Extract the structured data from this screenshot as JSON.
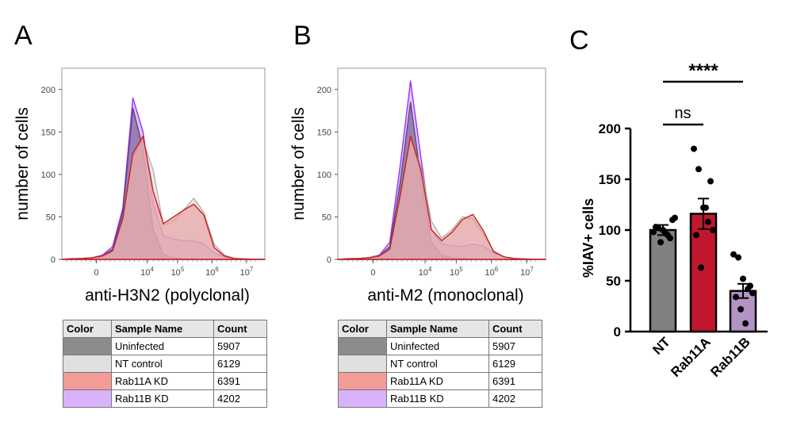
{
  "panels": {
    "a_letter": "A",
    "b_letter": "B",
    "c_letter": "C"
  },
  "chart_data": [
    {
      "type": "area",
      "panel": "A",
      "xlabel": "anti-H3N2 (polyclonal)",
      "ylabel": "number of cells",
      "ylim": [
        0,
        225
      ],
      "yticks": [
        0,
        50,
        100,
        150,
        200
      ],
      "xticks": [
        {
          "base": "0",
          "exp": ""
        },
        {
          "base": "10",
          "exp": "4"
        },
        {
          "base": "10",
          "exp": "5"
        },
        {
          "base": "10",
          "exp": "6"
        },
        {
          "base": "10",
          "exp": "7"
        }
      ],
      "x": [
        0,
        0.05,
        0.1,
        0.15,
        0.2,
        0.25,
        0.3,
        0.35,
        0.4,
        0.45,
        0.5,
        0.55,
        0.6,
        0.65,
        0.7,
        0.75,
        0.8,
        0.85,
        0.9,
        0.95,
        1.0
      ],
      "series": [
        {
          "name": "Rab11B KD",
          "color": "#cc99ff",
          "fill": "#c9a0f2",
          "stroke": "#9b30ff",
          "values": [
            0,
            1,
            1,
            2,
            5,
            15,
            60,
            190,
            150,
            65,
            28,
            24,
            22,
            22,
            18,
            8,
            3,
            1,
            0.5,
            0.3,
            0
          ]
        },
        {
          "name": "Uninfected",
          "color": "#808080",
          "fill": "#6e4f8a",
          "stroke": "#5a4a78",
          "values": [
            0,
            0.5,
            1,
            2,
            4,
            12,
            55,
            178,
            130,
            35,
            6,
            2,
            1,
            0.5,
            0.3,
            0.2,
            0,
            0,
            0,
            0,
            0
          ]
        },
        {
          "name": "NT control",
          "color": "#d9d9d9",
          "fill": "#dedede",
          "stroke": "#b0b0b0",
          "values": [
            0,
            0.5,
            1,
            2,
            4,
            10,
            45,
            120,
            140,
            105,
            40,
            45,
            58,
            72,
            55,
            18,
            5,
            1,
            0.5,
            0,
            0
          ]
        },
        {
          "name": "Rab11A KD",
          "color": "#f08c8c",
          "fill": "#e89898",
          "stroke": "#cc1f1f",
          "values": [
            0,
            0.5,
            1,
            2,
            4,
            10,
            48,
            125,
            145,
            80,
            42,
            50,
            58,
            65,
            52,
            14,
            4,
            1,
            0.5,
            0,
            0
          ]
        }
      ],
      "table": {
        "headers": [
          "Color",
          "Sample Name",
          "Count"
        ],
        "rows": [
          {
            "color": "#8c8c8c",
            "name": "Uninfected",
            "count": "5907"
          },
          {
            "color": "#e0e0e0",
            "name": "NT control",
            "count": "6129"
          },
          {
            "color": "#f29b97",
            "name": "Rab11A KD",
            "count": "6391"
          },
          {
            "color": "#d9b3fa",
            "name": "Rab11B KD",
            "count": "4202"
          }
        ]
      }
    },
    {
      "type": "area",
      "panel": "B",
      "xlabel": "anti-M2 (monoclonal)",
      "ylabel": "number of cells",
      "ylim": [
        0,
        225
      ],
      "yticks": [
        0,
        50,
        100,
        150,
        200
      ],
      "xticks": [
        {
          "base": "0",
          "exp": ""
        },
        {
          "base": "10",
          "exp": "4"
        },
        {
          "base": "10",
          "exp": "5"
        },
        {
          "base": "10",
          "exp": "6"
        },
        {
          "base": "10",
          "exp": "7"
        }
      ],
      "x": [
        0,
        0.05,
        0.1,
        0.15,
        0.2,
        0.25,
        0.3,
        0.35,
        0.4,
        0.45,
        0.5,
        0.55,
        0.6,
        0.65,
        0.7,
        0.75,
        0.8,
        0.85,
        0.9,
        0.95,
        1.0
      ],
      "series": [
        {
          "name": "Rab11B KD",
          "color": "#cc99ff",
          "fill": "#c9a0f2",
          "stroke": "#9b30ff",
          "values": [
            0,
            1,
            1,
            2,
            5,
            20,
            110,
            210,
            120,
            35,
            18,
            16,
            15,
            18,
            16,
            7,
            3,
            1,
            0.5,
            0.3,
            0
          ]
        },
        {
          "name": "Uninfected",
          "color": "#808080",
          "fill": "#6e4f8a",
          "stroke": "#5a4a78",
          "values": [
            0,
            0.5,
            1,
            2,
            4,
            15,
            90,
            185,
            95,
            20,
            5,
            2,
            1,
            0.5,
            0.3,
            0.2,
            0,
            0,
            0,
            0,
            0
          ]
        },
        {
          "name": "NT control",
          "color": "#d9d9d9",
          "fill": "#dedede",
          "stroke": "#b0b0b0",
          "values": [
            0,
            0.5,
            1,
            2,
            4,
            12,
            70,
            140,
            110,
            45,
            25,
            35,
            50,
            48,
            30,
            10,
            3,
            1,
            0.5,
            0,
            0
          ]
        },
        {
          "name": "Rab11A KD",
          "color": "#f08c8c",
          "fill": "#e89898",
          "stroke": "#cc1f1f",
          "values": [
            0,
            0.5,
            1,
            2,
            4,
            12,
            75,
            145,
            105,
            35,
            22,
            32,
            47,
            53,
            34,
            9,
            3,
            1,
            0.5,
            0,
            0
          ]
        }
      ],
      "table": {
        "headers": [
          "Color",
          "Sample Name",
          "Count"
        ],
        "rows": [
          {
            "color": "#8c8c8c",
            "name": "Uninfected",
            "count": "5907"
          },
          {
            "color": "#e0e0e0",
            "name": "NT control",
            "count": "6129"
          },
          {
            "color": "#f29b97",
            "name": "Rab11A KD",
            "count": "6391"
          },
          {
            "color": "#d9b3fa",
            "name": "Rab11B KD",
            "count": "4202"
          }
        ]
      }
    },
    {
      "type": "bar",
      "panel": "C",
      "ylabel": "%IAV+ cells",
      "ylim": [
        0,
        200
      ],
      "yticks": [
        0,
        50,
        100,
        150,
        200
      ],
      "categories": [
        "NT",
        "Rab11A",
        "Rab11B"
      ],
      "values": [
        100,
        116,
        40
      ],
      "errors": [
        5,
        15,
        7
      ],
      "colors": [
        "#808080",
        "#c0172f",
        "#b293c4"
      ],
      "points": [
        [
          98,
          102,
          100,
          95,
          110,
          103,
          88,
          97,
          92,
          112
        ],
        [
          180,
          160,
          122,
          108,
          100,
          95,
          63,
          122,
          148
        ],
        [
          76,
          73,
          52,
          42,
          38,
          34,
          22,
          8,
          45
        ]
      ],
      "annotations": [
        {
          "label": "****",
          "from": "NT",
          "to": "Rab11B"
        },
        {
          "label": "ns",
          "from": "NT",
          "to": "Rab11A"
        }
      ]
    }
  ]
}
